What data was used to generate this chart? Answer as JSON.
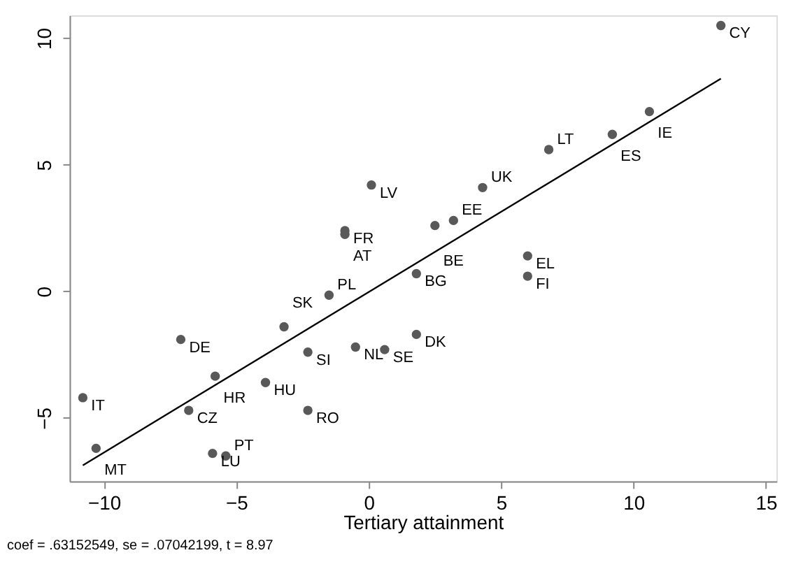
{
  "chart_data": {
    "type": "scatter",
    "xlabel": "Tertiary attainment",
    "xlim": [
      -11.3,
      15.4
    ],
    "ylim": [
      -7.5,
      10.9
    ],
    "xticks": [
      -10,
      -5,
      0,
      5,
      10,
      15
    ],
    "yticks": [
      -5,
      0,
      5,
      10
    ],
    "grid": false,
    "series": [
      {
        "marker": "circle",
        "color": "#595959",
        "x": [
          13.3,
          10.6,
          9.2,
          6.8,
          4.3,
          0.1,
          -0.9,
          -0.9,
          3.2,
          2.5,
          1.8,
          6.0,
          6.0,
          -1.5,
          1.8,
          -3.2,
          -7.1,
          -2.3,
          -0.5,
          0.6,
          -5.8,
          -3.9,
          -10.8,
          -6.8,
          -2.3,
          -10.3,
          -5.9,
          -5.4
        ],
        "values": [
          10.5,
          7.1,
          6.2,
          5.6,
          4.1,
          4.2,
          2.4,
          2.25,
          2.8,
          2.6,
          0.7,
          1.4,
          0.6,
          -0.15,
          -1.7,
          -1.4,
          -1.9,
          -2.4,
          -2.2,
          -2.3,
          -3.35,
          -3.6,
          -4.2,
          -4.7,
          -4.7,
          -6.2,
          -6.4,
          -6.5
        ]
      },
      {
        "type": "line",
        "line_style": "solid",
        "color": "#000000",
        "x": [
          -10.8,
          13.3
        ],
        "values": [
          -6.87,
          8.4
        ]
      }
    ],
    "annotations": [
      {
        "text": "CY",
        "x": 13.3,
        "y": 10.5
      },
      {
        "text": "IE",
        "x": 10.6,
        "y": 7.1
      },
      {
        "text": "ES",
        "x": 9.2,
        "y": 6.2
      },
      {
        "text": "LT",
        "x": 6.8,
        "y": 5.6
      },
      {
        "text": "UK",
        "x": 4.3,
        "y": 4.1
      },
      {
        "text": "LV",
        "x": 0.1,
        "y": 4.2
      },
      {
        "text": "FR",
        "x": -0.9,
        "y": 2.4
      },
      {
        "text": "AT",
        "x": -0.9,
        "y": 2.25
      },
      {
        "text": "EE",
        "x": 3.2,
        "y": 2.8
      },
      {
        "text": "BE",
        "x": 2.5,
        "y": 2.6
      },
      {
        "text": "BG",
        "x": 1.8,
        "y": 0.7
      },
      {
        "text": "EL",
        "x": 6.0,
        "y": 1.4
      },
      {
        "text": "FI",
        "x": 6.0,
        "y": 0.6
      },
      {
        "text": "PL",
        "x": -1.5,
        "y": -0.15
      },
      {
        "text": "DK",
        "x": 1.8,
        "y": -1.7
      },
      {
        "text": "SK",
        "x": -3.2,
        "y": -1.4
      },
      {
        "text": "DE",
        "x": -7.1,
        "y": -1.9
      },
      {
        "text": "SI",
        "x": -2.3,
        "y": -2.4
      },
      {
        "text": "NL",
        "x": -0.5,
        "y": -2.2
      },
      {
        "text": "SE",
        "x": 0.6,
        "y": -2.3
      },
      {
        "text": "HR",
        "x": -5.8,
        "y": -3.35
      },
      {
        "text": "HU",
        "x": -3.9,
        "y": -3.6
      },
      {
        "text": "IT",
        "x": -10.8,
        "y": -4.2
      },
      {
        "text": "CZ",
        "x": -6.8,
        "y": -4.7
      },
      {
        "text": "RO",
        "x": -2.3,
        "y": -4.7
      },
      {
        "text": "MT",
        "x": -10.3,
        "y": -6.2
      },
      {
        "text": "LU",
        "x": -5.9,
        "y": -6.4
      },
      {
        "text": "PT",
        "x": -5.4,
        "y": -6.5
      },
      "coef = .63152549, se = .07042199, t = 8.97"
    ]
  }
}
